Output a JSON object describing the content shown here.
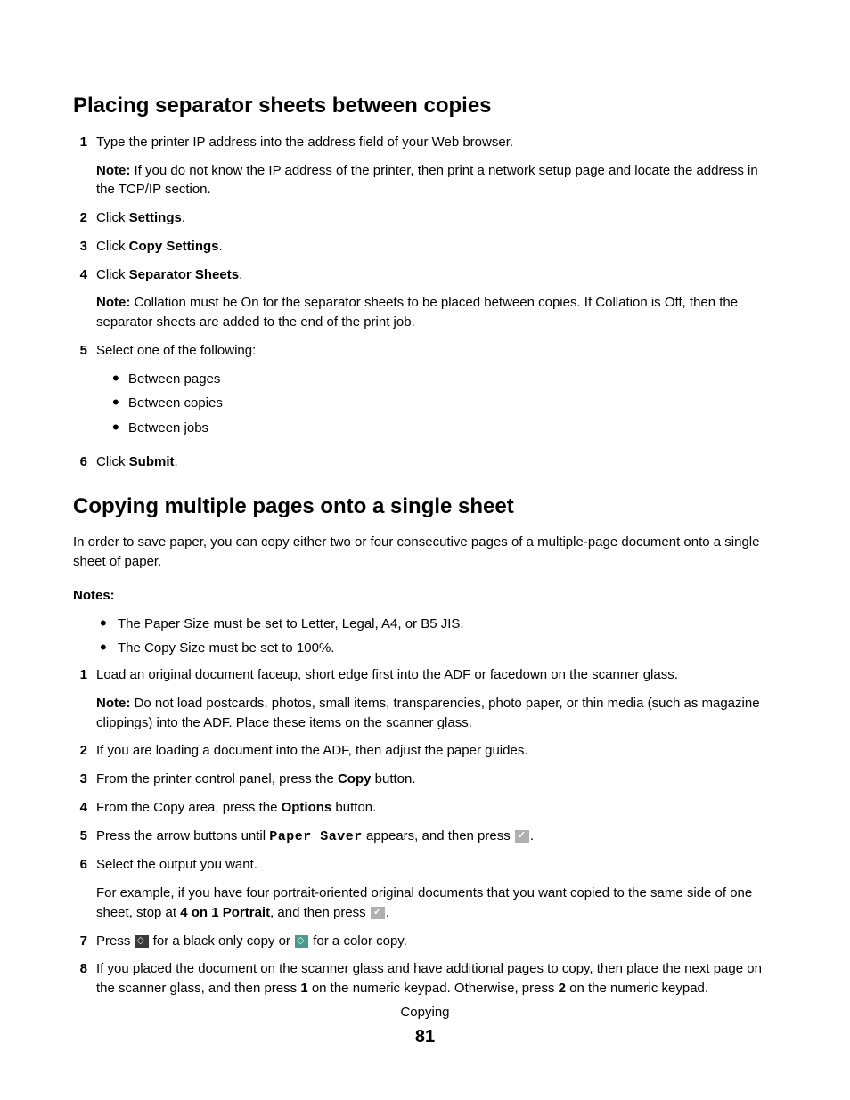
{
  "section1": {
    "heading": "Placing separator sheets between copies",
    "steps": [
      {
        "num": "1",
        "text": "Type the printer IP address into the address field of your Web browser.",
        "note_prefix": "Note:",
        "note_text": " If you do not know the IP address of the printer, then print a network setup page and locate the address in the TCP/IP section."
      },
      {
        "num": "2",
        "text_pre": "Click ",
        "bold": "Settings",
        "text_post": "."
      },
      {
        "num": "3",
        "text_pre": "Click ",
        "bold": "Copy Settings",
        "text_post": "."
      },
      {
        "num": "4",
        "text_pre": "Click ",
        "bold": "Separator Sheets",
        "text_post": ".",
        "note_prefix": "Note:",
        "note_text": " Collation must be On for the separator sheets to be placed between copies. If Collation is Off, then the separator sheets are added to the end of the print job."
      },
      {
        "num": "5",
        "text": "Select one of the following:",
        "bullets": [
          "Between pages",
          "Between copies",
          "Between jobs"
        ]
      },
      {
        "num": "6",
        "text_pre": "Click ",
        "bold": "Submit",
        "text_post": "."
      }
    ]
  },
  "section2": {
    "heading": "Copying multiple pages onto a single sheet",
    "intro": "In order to save paper, you can copy either two or four consecutive pages of a multiple-page document onto a single sheet of paper.",
    "notes_label": "Notes:",
    "notes_bullets": [
      "The Paper Size must be set to Letter, Legal, A4, or B5 JIS.",
      "The Copy Size must be set to 100%."
    ],
    "steps": {
      "1": {
        "num": "1",
        "text": "Load an original document faceup, short edge first into the ADF or facedown on the scanner glass.",
        "note_prefix": "Note:",
        "note_text": " Do not load postcards, photos, small items, transparencies, photo paper, or thin media (such as magazine clippings) into the ADF. Place these items on the scanner glass."
      },
      "2": {
        "num": "2",
        "text": "If you are loading a document into the ADF, then adjust the paper guides."
      },
      "3": {
        "num": "3",
        "pre": "From the printer control panel, press the ",
        "bold": "Copy",
        "post": " button."
      },
      "4": {
        "num": "4",
        "pre": "From the Copy area, press the ",
        "bold": "Options",
        "post": " button."
      },
      "5": {
        "num": "5",
        "pre": "Press the arrow buttons until ",
        "mono": "Paper Saver",
        "mid": " appears, and then press ",
        "post": "."
      },
      "6": {
        "num": "6",
        "text": "Select the output you want.",
        "extra_pre": "For example, if you have four portrait-oriented original documents that you want copied to the same side of one sheet, stop at ",
        "extra_bold": "4 on 1 Portrait",
        "extra_mid": ", and then press ",
        "extra_post": "."
      },
      "7": {
        "num": "7",
        "pre": "Press ",
        "mid": " for a black only copy or ",
        "post": " for a color copy."
      },
      "8": {
        "num": "8",
        "pre": "If you placed the document on the scanner glass and have additional pages to copy, then place the next page on the scanner glass, and then press ",
        "bold1": "1",
        "mid": " on the numeric keypad. Otherwise, press ",
        "bold2": "2",
        "post": " on the numeric keypad."
      }
    }
  },
  "footer": {
    "section": "Copying",
    "page": "81"
  }
}
